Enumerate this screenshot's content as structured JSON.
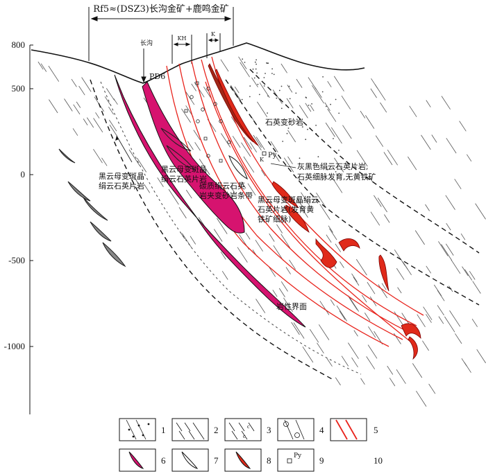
{
  "header": {
    "title": "Rf5≈(DSZ3)长沟金矿+鹿鸣金矿",
    "kh": "KH",
    "k": "K"
  },
  "axis": {
    "ticks": [
      "800",
      "500",
      "0",
      "-500",
      "-1000"
    ]
  },
  "labels": {
    "changgou": "长沟",
    "pd6": "PD6",
    "quartz_metasandstone": "石英变砂岩",
    "py": "Py",
    "k_mark": "K",
    "grey_schist": [
      "灰黑色绢云石英片岩,",
      "石英细脉发育,无黄铁矿"
    ],
    "biotite_left": [
      "黑云母变斑晶",
      "绢云石英片岩"
    ],
    "biotite_mid": [
      "黑云母变斑晶",
      "绢云石英片岩"
    ],
    "carbonaceous": [
      "碳质绢云石英",
      "岩夹变砂岩条带"
    ],
    "biotite_right": [
      "黑云母变斑晶绢云",
      "石英片岩(发育黄",
      "铁矿细脉)"
    ],
    "lithologic_boundary": "岩性界面"
  },
  "legend": {
    "items": [
      "1",
      "2",
      "3",
      "4",
      "5",
      "6",
      "7",
      "8",
      "9",
      "10"
    ],
    "py_label": "Py"
  },
  "colors": {
    "magenta_body": "#d6136f",
    "orebody_red": "#e02a1a",
    "fault_red": "#e8231c",
    "stroke": "#222222"
  }
}
